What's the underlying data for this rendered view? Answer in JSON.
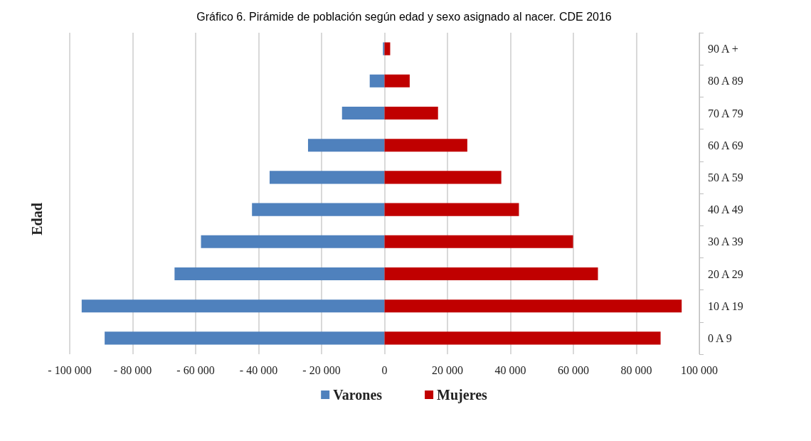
{
  "chart_data": {
    "type": "bar",
    "orientation": "horizontal",
    "title": "Gráfico 6. Pirámide de población según edad y sexo asignado al nacer. CDE 2016",
    "ylabel": "Edad",
    "categories": [
      "90 A +",
      "80 A 89",
      "70 A 79",
      "60 A 69",
      "50 A 59",
      "40 A 49",
      "30 A 39",
      "20 A 29",
      "10 A 19",
      "0 A 9"
    ],
    "series": [
      {
        "name": "Varones",
        "color": "#4f81bd",
        "values": [
          -500,
          -4700,
          -13500,
          -24300,
          -36500,
          -42100,
          -58300,
          -66700,
          -96200,
          -88900
        ]
      },
      {
        "name": "Mujeres",
        "color": "#c00000",
        "values": [
          1800,
          8000,
          17000,
          26300,
          37100,
          42700,
          59900,
          67800,
          94400,
          87700
        ]
      }
    ],
    "xlim": [
      -100000,
      100000
    ],
    "xticks": [
      {
        "value": -100000,
        "label": "- 100 000"
      },
      {
        "value": -80000,
        "label": "- 80 000"
      },
      {
        "value": -60000,
        "label": "- 60 000"
      },
      {
        "value": -40000,
        "label": "- 40 000"
      },
      {
        "value": -20000,
        "label": "- 20 000"
      },
      0,
      {
        "value": 20000,
        "label": "20 000"
      },
      {
        "value": 40000,
        "label": "40 000"
      },
      {
        "value": 60000,
        "label": "60 000"
      },
      {
        "value": 80000,
        "label": "80 000"
      },
      {
        "value": 100000,
        "label": "100 000"
      }
    ],
    "stacked": true,
    "grid": "x",
    "legend": "bottom"
  }
}
